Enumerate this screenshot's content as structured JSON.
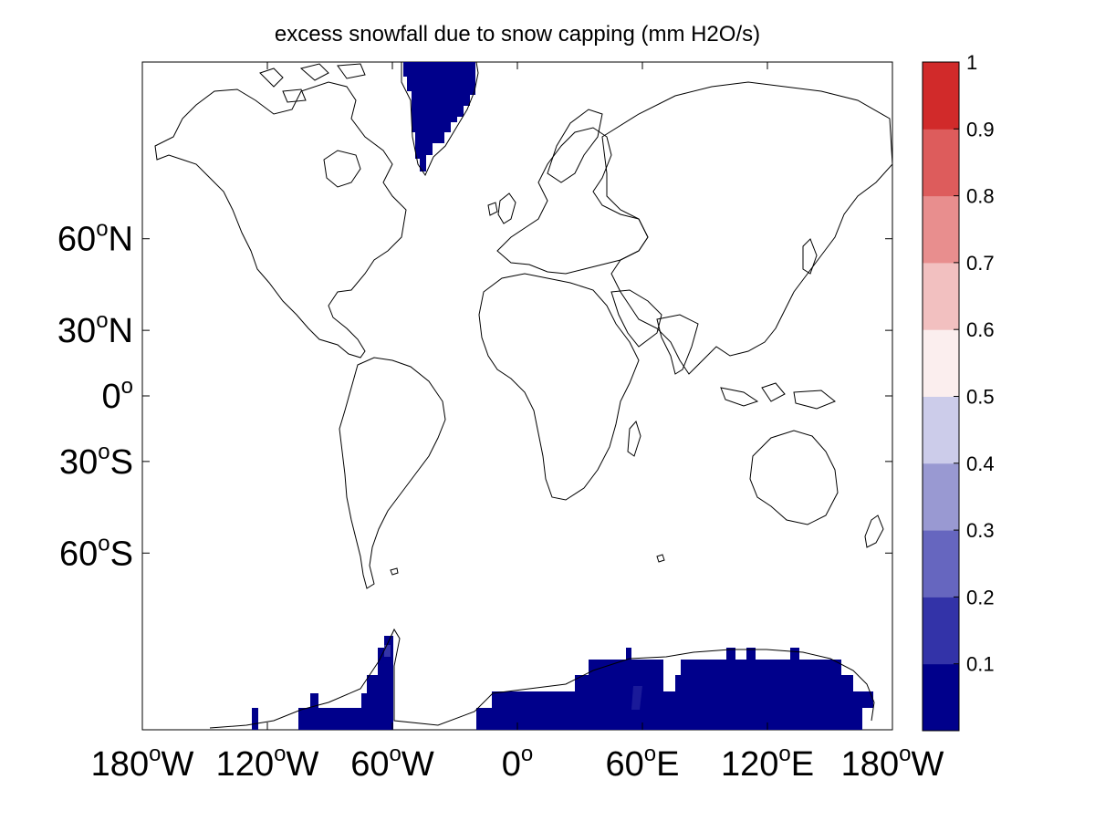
{
  "title": "excess snowfall due to snow capping (mm H2O/s)",
  "map": {
    "projection": "mercator",
    "lon_range": [
      -180,
      180
    ],
    "lat_range": [
      -80,
      80
    ],
    "lat_ticks": [
      {
        "value": 60,
        "deg": "60",
        "hemi": "N"
      },
      {
        "value": 30,
        "deg": "30",
        "hemi": "N"
      },
      {
        "value": 0,
        "deg": "0",
        "hemi": ""
      },
      {
        "value": -30,
        "deg": "30",
        "hemi": "S"
      },
      {
        "value": -60,
        "deg": "60",
        "hemi": "S"
      }
    ],
    "lon_ticks": [
      {
        "value": -180,
        "deg": "180",
        "hemi": "W"
      },
      {
        "value": -120,
        "deg": "120",
        "hemi": "W"
      },
      {
        "value": -60,
        "deg": "60",
        "hemi": "W"
      },
      {
        "value": 0,
        "deg": "0",
        "hemi": ""
      },
      {
        "value": 60,
        "deg": "60",
        "hemi": "E"
      },
      {
        "value": 120,
        "deg": "120",
        "hemi": "E"
      },
      {
        "value": 180,
        "deg": "180",
        "hemi": "W"
      }
    ]
  },
  "colorbar": {
    "range": [
      0,
      1
    ],
    "levels": [
      0.1,
      0.2,
      0.3,
      0.4,
      0.5,
      0.6,
      0.7,
      0.8,
      0.9,
      1.0
    ],
    "labels": [
      "0.1",
      "0.2",
      "0.3",
      "0.4",
      "0.5",
      "0.6",
      "0.7",
      "0.8",
      "0.9",
      "1"
    ],
    "colors": [
      "#00008b",
      "#3333a8",
      "#6666bf",
      "#9999d2",
      "#ccccea",
      "#fbeeee",
      "#f2c0c0",
      "#e88e8e",
      "#dd5c5c",
      "#d12a2a"
    ]
  },
  "fields": {
    "fill_color": "#00008b",
    "regions": [
      {
        "name": "Greenland",
        "value": 0.05
      },
      {
        "name": "Antarctic Peninsula / West Antarctica",
        "value": 0.05
      },
      {
        "name": "East Antarctica",
        "value": 0.05
      }
    ]
  }
}
